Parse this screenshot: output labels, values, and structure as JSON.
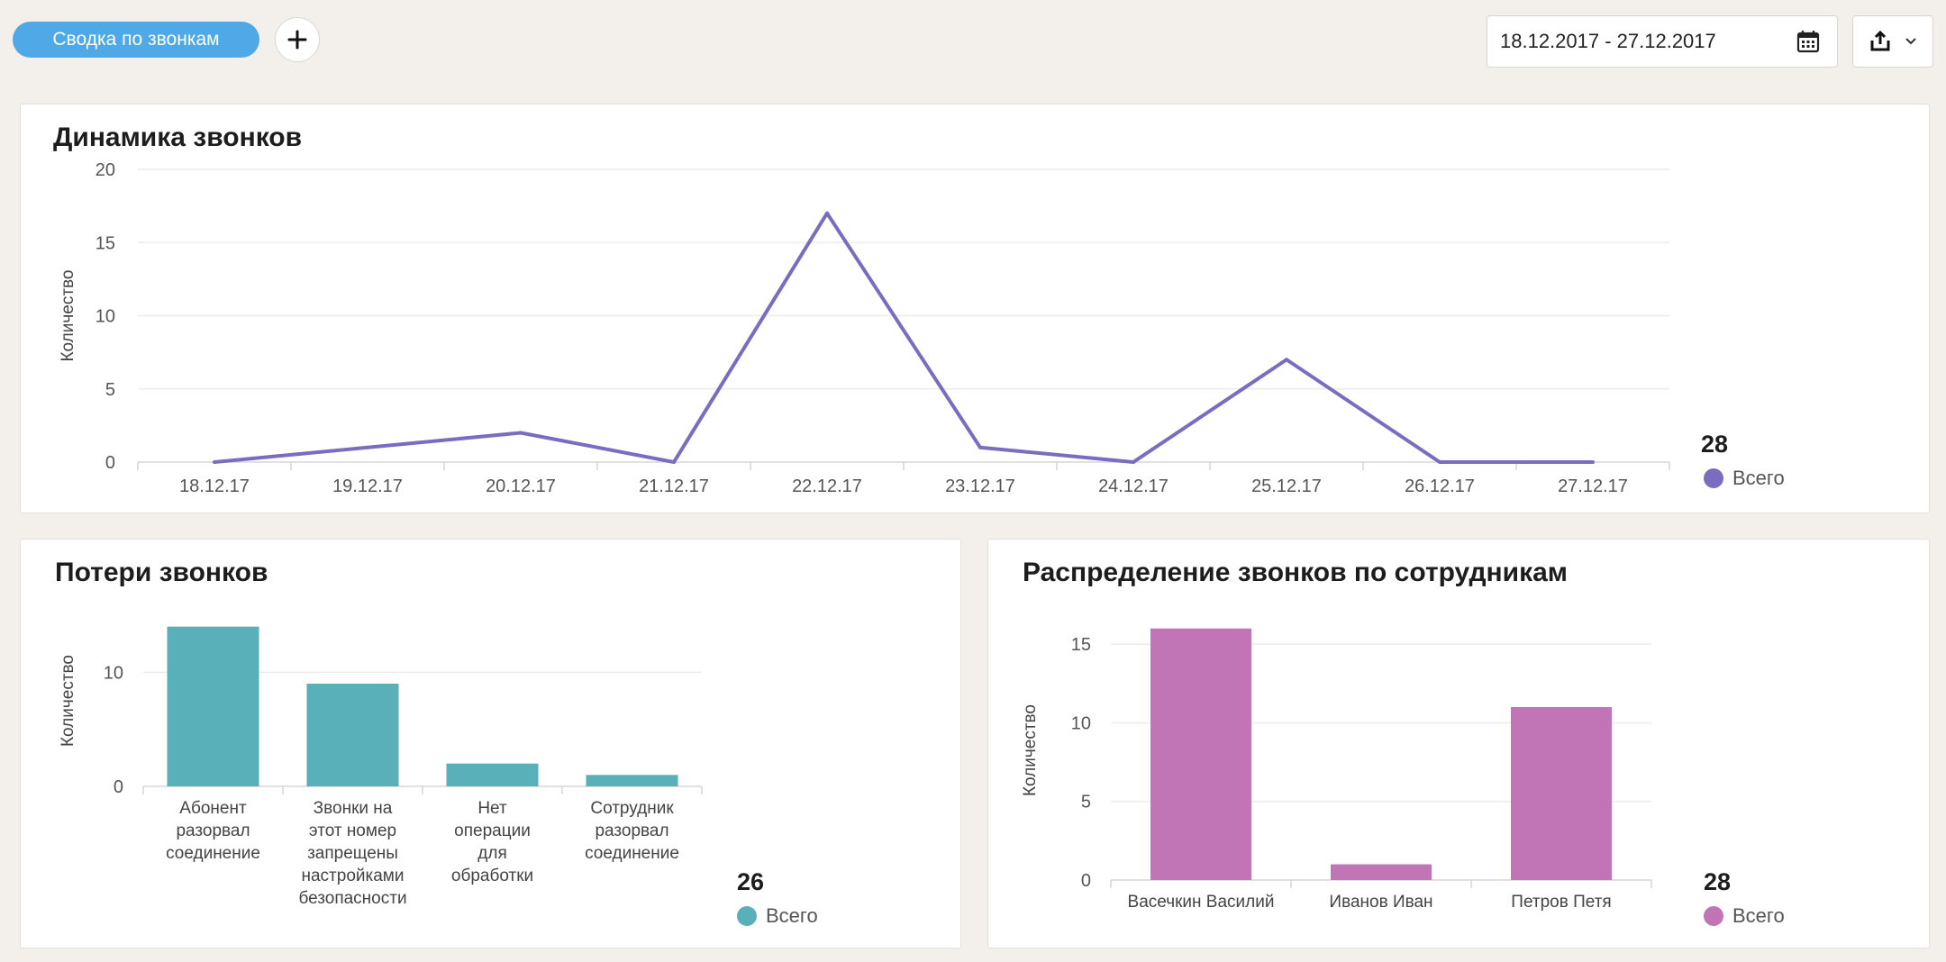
{
  "header": {
    "tab_label": "Сводка по звонкам",
    "date_range": "18.12.2017 - 27.12.2017"
  },
  "dynamics": {
    "title": "Динамика звонков",
    "total": "28",
    "legend_label": "Всего",
    "chart_data": {
      "type": "line",
      "x": [
        "18.12.17",
        "19.12.17",
        "20.12.17",
        "21.12.17",
        "22.12.17",
        "23.12.17",
        "24.12.17",
        "25.12.17",
        "26.12.17",
        "27.12.17"
      ],
      "series": [
        {
          "name": "Всего",
          "values": [
            0,
            1,
            2,
            0,
            17,
            1,
            0,
            7,
            0,
            0
          ]
        }
      ],
      "ylabel": "Количество",
      "ylim": [
        0,
        20
      ],
      "yticks": [
        0,
        5,
        10,
        15,
        20
      ],
      "color": "#7b6cc2"
    }
  },
  "losses": {
    "title": "Потери звонков",
    "total": "26",
    "legend_label": "Всего",
    "chart_data": {
      "type": "bar",
      "categories": [
        [
          "Абонент",
          "разорвал",
          "соединение"
        ],
        [
          "Звонки на",
          "этот номер",
          "запрещены",
          "настройками",
          "безопасности"
        ],
        [
          "Нет",
          "операции",
          "для",
          "обработки"
        ],
        [
          "Сотрудник",
          "разорвал",
          "соединение"
        ]
      ],
      "values": [
        14,
        9,
        2,
        1
      ],
      "ylabel": "Количество",
      "ylim": [
        0,
        15
      ],
      "yticks": [
        0,
        10
      ],
      "color": "#5ab0b8"
    }
  },
  "distribution": {
    "title": "Распределение звонков по сотрудникам",
    "total": "28",
    "legend_label": "Всего",
    "chart_data": {
      "type": "bar",
      "categories": [
        [
          "Васечкин Василий"
        ],
        [
          "Иванов Иван"
        ],
        [
          "Петров Петя"
        ]
      ],
      "values": [
        16,
        1,
        11
      ],
      "ylabel": "Количество",
      "ylim": [
        0,
        16.5
      ],
      "yticks": [
        0,
        5,
        10,
        15
      ],
      "color": "#c174b6"
    }
  }
}
